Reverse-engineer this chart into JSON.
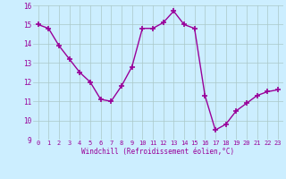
{
  "hours": [
    0,
    1,
    2,
    3,
    4,
    5,
    6,
    7,
    8,
    9,
    10,
    11,
    12,
    13,
    14,
    15,
    16,
    17,
    18,
    19,
    20,
    21,
    22,
    23
  ],
  "windchill": [
    15.0,
    14.8,
    13.9,
    13.2,
    12.5,
    12.0,
    11.1,
    11.0,
    11.8,
    12.8,
    14.8,
    14.8,
    15.1,
    15.7,
    15.0,
    14.8,
    11.3,
    9.5,
    9.8,
    10.5,
    10.9,
    11.3,
    11.5,
    11.6
  ],
  "line_color": "#990099",
  "marker": "+",
  "marker_size": 4,
  "bg_color": "#cceeff",
  "grid_color": "#aac8c8",
  "xlabel": "Windchill (Refroidissement éolien,°C)",
  "xlabel_color": "#990099",
  "tick_color": "#990099",
  "ylim": [
    9,
    16
  ],
  "yticks": [
    9,
    10,
    11,
    12,
    13,
    14,
    15,
    16
  ],
  "xticks": [
    0,
    1,
    2,
    3,
    4,
    5,
    6,
    7,
    8,
    9,
    10,
    11,
    12,
    13,
    14,
    15,
    16,
    17,
    18,
    19,
    20,
    21,
    22,
    23
  ]
}
